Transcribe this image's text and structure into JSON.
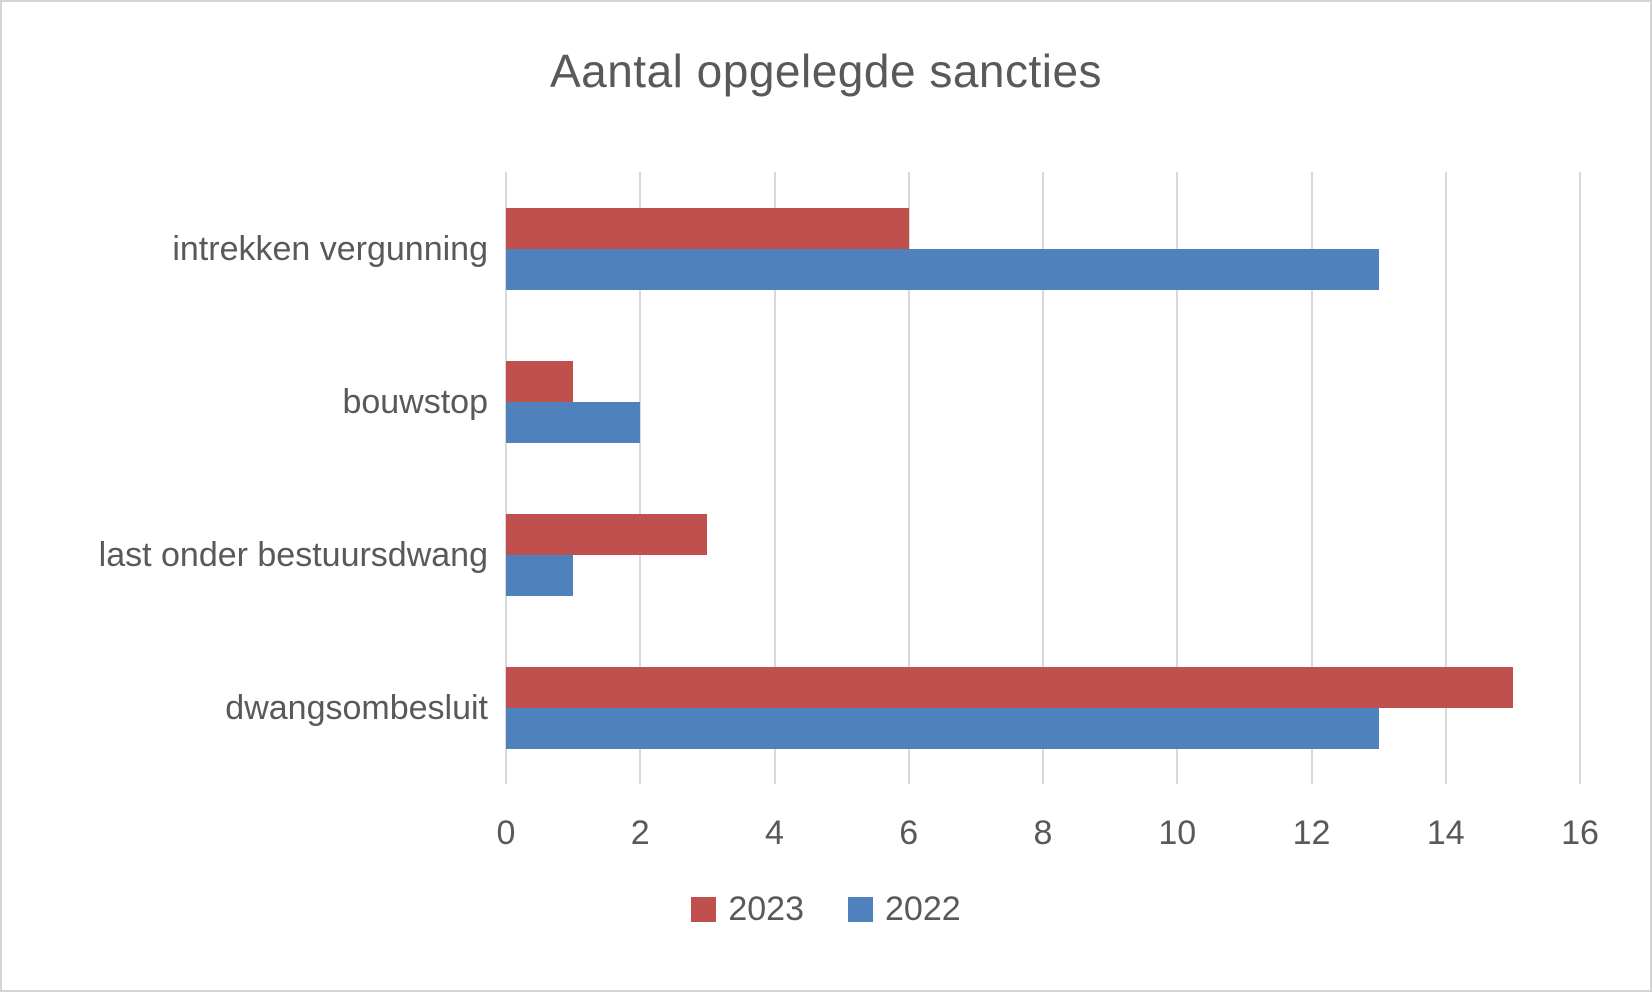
{
  "chart_data": {
    "type": "bar",
    "orientation": "horizontal",
    "title": "Aantal opgelegde sancties",
    "categories": [
      "intrekken vergunning",
      "bouwstop",
      "last onder bestuursdwang",
      "dwangsombesluit"
    ],
    "category_order": "top-to-bottom",
    "series": [
      {
        "name": "2023",
        "color": "#c0504d",
        "values": [
          6,
          1,
          3,
          15
        ]
      },
      {
        "name": "2022",
        "color": "#4f81bd",
        "values": [
          13,
          2,
          1,
          13
        ]
      }
    ],
    "xlabel": "",
    "ylabel": "",
    "xlim": [
      0,
      16
    ],
    "xticks": [
      0,
      2,
      4,
      6,
      8,
      10,
      12,
      14,
      16
    ],
    "grid": true,
    "gridline_color": "#d9d9d9",
    "legend_position": "bottom",
    "text_color": "#595959",
    "background_color": "#ffffff"
  }
}
